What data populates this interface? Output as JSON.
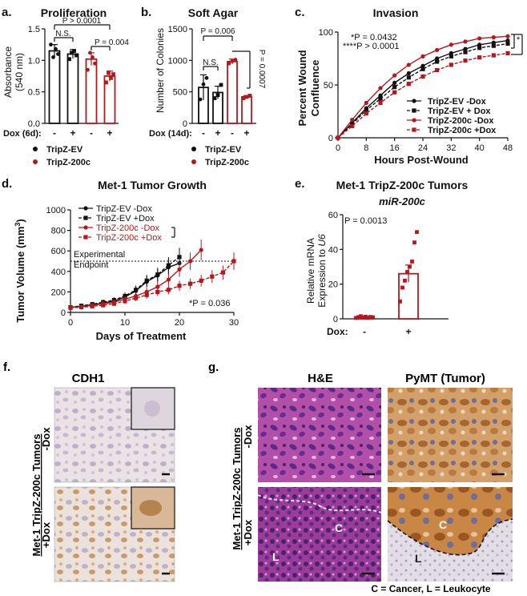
{
  "colors": {
    "black": "#111111",
    "red": "#b5171c",
    "darkred": "#8e0e12",
    "tissue_he": "#b14aa8",
    "tissue_ihc": "#e6dfe2"
  },
  "panel_letters": {
    "a": "a.",
    "b": "b.",
    "c": "c.",
    "d": "d.",
    "e": "e.",
    "f": "f.",
    "g": "g."
  },
  "chart_data": [
    {
      "id": "a",
      "type": "bar",
      "title": "Proliferation",
      "ylabel": "Absorbance",
      "ylabel2": "(540 nm)",
      "ylim": [
        0,
        1.5
      ],
      "yticks": [
        "0.0",
        "0.5",
        "1.0",
        "1.5"
      ],
      "row_label": "Dox (6d):",
      "dox": [
        "-",
        "+",
        "-",
        "+"
      ],
      "categories": [
        "TripZ-EV -Dox",
        "TripZ-EV +Dox",
        "TripZ-200c -Dox",
        "TripZ-200c +Dox"
      ],
      "values": [
        1.15,
        1.1,
        1.02,
        0.75
      ],
      "errors": [
        0.1,
        0.07,
        0.1,
        0.08
      ],
      "points": [
        [
          1.25,
          1.05,
          1.18,
          1.1
        ],
        [
          1.02,
          1.12,
          1.15,
          1.08
        ],
        [
          0.85,
          1.12,
          1.05,
          0.95
        ],
        [
          0.65,
          0.8,
          0.72,
          0.78
        ]
      ],
      "annotations": [
        "P > 0.0001",
        "N.S.",
        "P = 0.004"
      ],
      "legend": [
        "TripZ-EV",
        "TripZ-200c"
      ]
    },
    {
      "id": "b",
      "type": "bar",
      "title": "Soft  Agar",
      "ylabel": "Number of Colonies",
      "ylim": [
        0,
        1500
      ],
      "yticks": [
        "0",
        "500",
        "1000",
        "1500"
      ],
      "row_label": "Dox (14d):",
      "dox": [
        "-",
        "+",
        "-",
        "+"
      ],
      "categories": [
        "TripZ-EV -Dox",
        "TripZ-EV +Dox",
        "TripZ-200c -Dox",
        "TripZ-200c +Dox"
      ],
      "values": [
        570,
        490,
        980,
        420
      ],
      "errors": [
        200,
        100,
        40,
        20
      ],
      "points": [
        [
          380,
          620,
          720
        ],
        [
          400,
          450,
          610
        ],
        [
          950,
          990,
          1010
        ],
        [
          400,
          420,
          440
        ]
      ],
      "annotations": [
        "P = 0.006",
        "N.S.",
        "P = 0.0007"
      ],
      "legend": [
        "TripZ-EV",
        "TripZ-200c"
      ]
    },
    {
      "id": "c",
      "type": "line",
      "title": "Invasion",
      "ylabel": "Percent Wound",
      "ylabel2": "Confluence",
      "xlabel": "Hours Post-Wound",
      "xlim": [
        0,
        48
      ],
      "ylim": [
        0,
        100
      ],
      "xticks": [
        "0",
        "8",
        "16",
        "24",
        "32",
        "40",
        "48"
      ],
      "yticks": [
        "0",
        "50",
        "100"
      ],
      "x": [
        0,
        4,
        8,
        12,
        16,
        20,
        24,
        28,
        32,
        36,
        40,
        44,
        48
      ],
      "series": [
        {
          "name": "TripZ-EV -Dox",
          "values": [
            0,
            14,
            28,
            40,
            52,
            61,
            68,
            75,
            80,
            84,
            88,
            90,
            92
          ]
        },
        {
          "name": "TripZ-EV + Dox",
          "values": [
            0,
            13,
            26,
            37,
            48,
            57,
            65,
            72,
            77,
            81,
            85,
            87,
            89
          ]
        },
        {
          "name": "TripZ-200c -Dox",
          "values": [
            0,
            17,
            33,
            47,
            59,
            69,
            77,
            83,
            88,
            91,
            94,
            95,
            96
          ]
        },
        {
          "name": "TripZ-200c +Dox",
          "values": [
            0,
            11,
            23,
            33,
            43,
            51,
            58,
            64,
            69,
            73,
            76,
            78,
            80
          ]
        }
      ],
      "annotations": [
        "*P = 0.0432",
        "****P > 0.0001",
        "*",
        "****"
      ]
    },
    {
      "id": "d",
      "type": "line",
      "title": "Met-1 Tumor  Growth",
      "ylabel": "Tumor Volume (mm",
      "ylabel_sup": "3",
      "ylabel_end": ")",
      "xlabel": "Days of Treatment",
      "xlim": [
        0,
        30
      ],
      "ylim": [
        0,
        1000
      ],
      "xticks": [
        "0",
        "10",
        "20",
        "30"
      ],
      "yticks": [
        "0",
        "200",
        "400",
        "600",
        "800",
        "1000"
      ],
      "series": [
        {
          "name": "TripZ-EV -Dox",
          "x": [
            0,
            2,
            4,
            6,
            8,
            10,
            12,
            14,
            16,
            18,
            20
          ],
          "values": [
            50,
            60,
            75,
            90,
            110,
            150,
            210,
            300,
            360,
            440,
            480
          ]
        },
        {
          "name": "TripZ-EV +Dox",
          "x": [
            0,
            2,
            4,
            6,
            8,
            10,
            12,
            14,
            16,
            18,
            20
          ],
          "values": [
            50,
            65,
            80,
            100,
            120,
            160,
            220,
            310,
            370,
            460,
            540
          ]
        },
        {
          "name": "TripZ-200c -Dox",
          "x": [
            0,
            2,
            4,
            6,
            8,
            10,
            12,
            14,
            16,
            18,
            20,
            22,
            24
          ],
          "values": [
            50,
            55,
            70,
            85,
            100,
            130,
            160,
            200,
            250,
            320,
            420,
            500,
            610
          ]
        },
        {
          "name": "TripZ-200c +Dox",
          "x": [
            0,
            2,
            4,
            6,
            8,
            10,
            12,
            14,
            16,
            18,
            20,
            22,
            24,
            26,
            28,
            30
          ],
          "values": [
            45,
            50,
            60,
            70,
            85,
            110,
            140,
            170,
            200,
            220,
            260,
            280,
            310,
            350,
            390,
            500
          ]
        }
      ],
      "annotations": [
        "Experimental",
        "Endpoint",
        "*P = 0.036"
      ],
      "endpoint": 500
    },
    {
      "id": "e",
      "type": "bar",
      "title": "Met-1 TripZ-200c Tumors",
      "subtitle": "miR-200c",
      "ylabel": "Relative mRNA",
      "ylabel2": "Expression to ",
      "ylabel2_italic": "U6",
      "ylim": [
        0,
        60
      ],
      "yticks": [
        "0",
        "20",
        "40",
        "60"
      ],
      "row_label": "Dox:",
      "dox": [
        "-",
        "+"
      ],
      "values": [
        1,
        26
      ],
      "errors": [
        0.5,
        5
      ],
      "points": [
        [
          0.5,
          1,
          1.5,
          0.8,
          1.2,
          0.6,
          1.1,
          0.9
        ],
        [
          10,
          18,
          22,
          27,
          30,
          33,
          44,
          50
        ]
      ],
      "annotations": [
        "P = 0.0013"
      ]
    }
  ],
  "panel_f": {
    "title": "CDH1",
    "side_label": "Met-1 TripZ-200c Tumors",
    "rows": [
      "-Dox",
      "+Dox"
    ]
  },
  "panel_g": {
    "titles": [
      "H&E",
      "PyMT (Tumor)"
    ],
    "side_label": "Met-1 TripZ-200c Tumors",
    "rows": [
      "-Dox",
      "+Dox"
    ],
    "region_labels": [
      "C",
      "L",
      "C",
      "L"
    ],
    "footer": "C = Cancer, L = Leukocyte"
  }
}
